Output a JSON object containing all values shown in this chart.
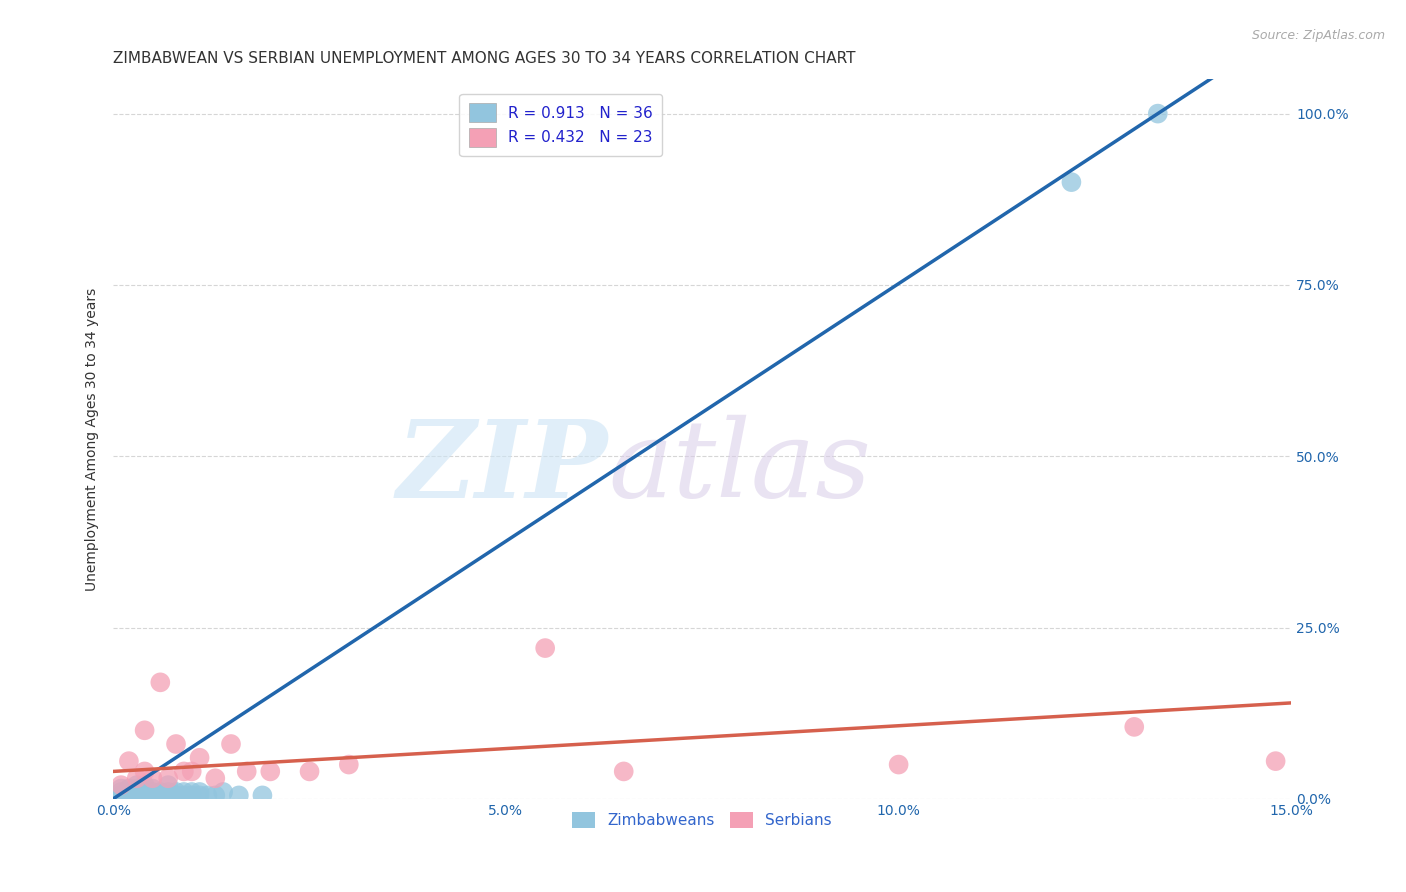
{
  "title": "ZIMBABWEAN VS SERBIAN UNEMPLOYMENT AMONG AGES 30 TO 34 YEARS CORRELATION CHART",
  "source": "Source: ZipAtlas.com",
  "ylabel": "Unemployment Among Ages 30 to 34 years",
  "xlim": [
    0,
    0.15
  ],
  "ylim": [
    0,
    1.05
  ],
  "xticks": [
    0.0,
    0.05,
    0.1,
    0.15
  ],
  "yticks": [
    0.0,
    0.25,
    0.5,
    0.75,
    1.0
  ],
  "xtick_labels": [
    "0.0%",
    "5.0%",
    "10.0%",
    "15.0%"
  ],
  "ytick_labels": [
    "0.0%",
    "25.0%",
    "50.0%",
    "75.0%",
    "100.0%"
  ],
  "zim_color": "#92c5de",
  "zim_line_color": "#2166ac",
  "serb_color": "#f4a0b5",
  "serb_line_color": "#d6604d",
  "R_zim": 0.913,
  "N_zim": 36,
  "R_serb": 0.432,
  "N_serb": 23,
  "background_color": "#ffffff",
  "grid_color": "#cccccc",
  "zim_x": [
    0.001,
    0.001,
    0.001,
    0.002,
    0.002,
    0.002,
    0.003,
    0.003,
    0.003,
    0.003,
    0.004,
    0.004,
    0.004,
    0.005,
    0.005,
    0.005,
    0.006,
    0.006,
    0.007,
    0.007,
    0.007,
    0.008,
    0.008,
    0.009,
    0.009,
    0.01,
    0.01,
    0.011,
    0.011,
    0.012,
    0.013,
    0.014,
    0.016,
    0.019,
    0.122,
    0.133
  ],
  "zim_y": [
    0.005,
    0.01,
    0.015,
    0.005,
    0.01,
    0.015,
    0.005,
    0.01,
    0.015,
    0.02,
    0.005,
    0.01,
    0.02,
    0.005,
    0.01,
    0.015,
    0.005,
    0.01,
    0.005,
    0.01,
    0.02,
    0.005,
    0.01,
    0.005,
    0.01,
    0.005,
    0.01,
    0.005,
    0.01,
    0.005,
    0.005,
    0.01,
    0.005,
    0.005,
    0.9,
    1.0
  ],
  "serb_x": [
    0.001,
    0.002,
    0.003,
    0.004,
    0.004,
    0.005,
    0.006,
    0.007,
    0.008,
    0.009,
    0.01,
    0.011,
    0.013,
    0.015,
    0.017,
    0.02,
    0.025,
    0.03,
    0.055,
    0.065,
    0.1,
    0.13,
    0.148
  ],
  "serb_y": [
    0.02,
    0.055,
    0.03,
    0.1,
    0.04,
    0.03,
    0.17,
    0.03,
    0.08,
    0.04,
    0.04,
    0.06,
    0.03,
    0.08,
    0.04,
    0.04,
    0.04,
    0.05,
    0.22,
    0.04,
    0.05,
    0.105,
    0.055
  ],
  "legend_labels": [
    "Zimbabweans",
    "Serbians"
  ],
  "title_fontsize": 11,
  "axis_label_fontsize": 10,
  "tick_fontsize": 10,
  "legend_fontsize": 11
}
